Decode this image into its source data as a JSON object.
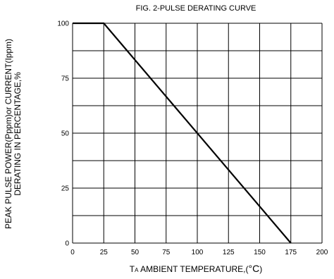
{
  "chart_data": {
    "type": "line",
    "title": "FIG. 2-PULSE DERATING CURVE",
    "xlabel": {
      "prefix": "T",
      "subscript": "A",
      "main": " AMBIENT TEMPERATURE,(",
      "unit": "°C",
      "suffix": ")"
    },
    "ylabel": {
      "line1": "PEAK PULSE POWER(Pppm)or CURRENT(Ippm)",
      "line2": "DERATING IN PERCENTAGE,%"
    },
    "xlim": [
      0,
      200
    ],
    "ylim": [
      0,
      100
    ],
    "x_ticks": [
      0,
      25,
      50,
      75,
      100,
      125,
      150,
      175,
      200
    ],
    "y_ticks": [
      0,
      25,
      50,
      75,
      100
    ],
    "grid": true,
    "series": [
      {
        "color": "#000000",
        "points": [
          {
            "x": 0,
            "y": 100
          },
          {
            "x": 25,
            "y": 100
          },
          {
            "x": 175,
            "y": 0
          }
        ]
      }
    ]
  }
}
